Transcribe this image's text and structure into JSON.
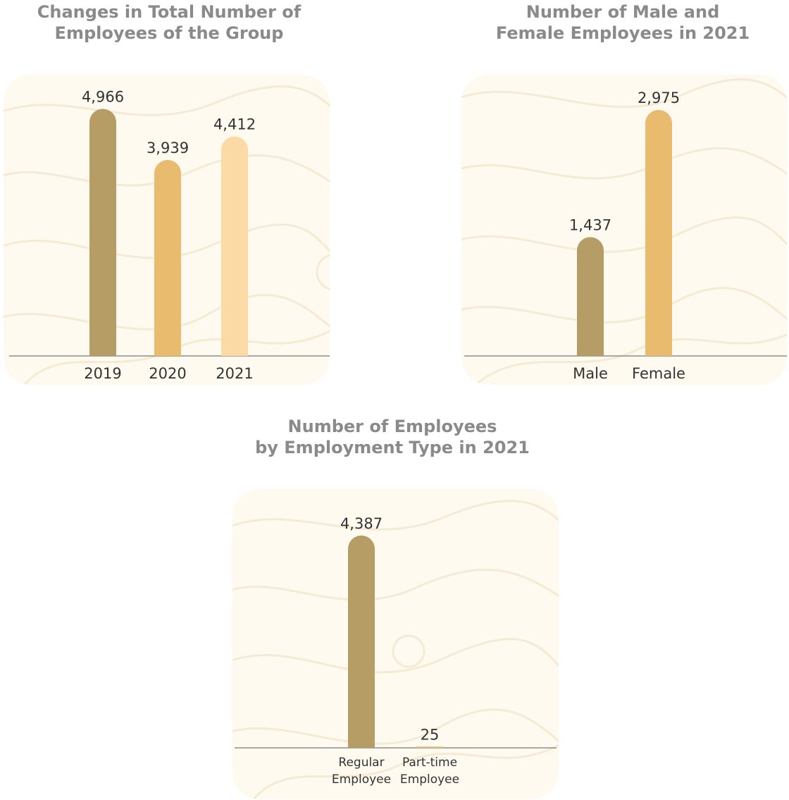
{
  "colors": {
    "dark_gold": "#b69c65",
    "mid_gold": "#e8bb6e",
    "light_gold": "#fcdaa5",
    "panel_bg": "#fefaf0",
    "contour": "#f6ead2",
    "title": "#8a8a8a",
    "axis": "#8c8c8c",
    "text": "#333333"
  },
  "chart_data": [
    {
      "type": "bar",
      "title": [
        "Changes in Total Number of",
        "Employees of the Group"
      ],
      "categories": [
        "2019",
        "2020",
        "2021"
      ],
      "values": [
        4966,
        3939,
        4412
      ],
      "value_labels": [
        "4,966",
        "3,939",
        "4,412"
      ],
      "bar_colors": [
        "#b69c65",
        "#e8bb6e",
        "#fcdaa5"
      ],
      "ylim": [
        0,
        5100
      ],
      "grid": false
    },
    {
      "type": "bar",
      "title": [
        "Number of Male and",
        "Female Employees in 2021"
      ],
      "categories": [
        "Male",
        "Female"
      ],
      "values": [
        1437,
        2975
      ],
      "value_labels": [
        "1,437",
        "2,975"
      ],
      "bar_colors": [
        "#b69c65",
        "#e8bb6e"
      ],
      "ylim": [
        0,
        3060
      ],
      "grid": false
    },
    {
      "type": "bar",
      "title": [
        "Number of Employees",
        "by Employment Type in 2021"
      ],
      "categories": [
        [
          "Regular",
          "Employee"
        ],
        [
          "Part-time",
          "Employee"
        ]
      ],
      "values": [
        4387,
        25
      ],
      "value_labels": [
        "4,387",
        "25"
      ],
      "bar_colors": [
        "#b69c65",
        "#e8bb6e"
      ],
      "ylim": [
        0,
        4500
      ],
      "grid": false
    }
  ]
}
